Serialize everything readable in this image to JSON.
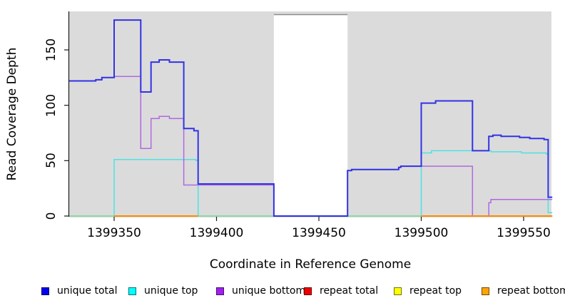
{
  "chart_data": {
    "type": "line",
    "title": "",
    "xlabel": "Coordinate in Reference Genome",
    "ylabel": "Read Coverage Depth",
    "x_ticks": [
      1399350,
      1399400,
      1399450,
      1399500,
      1399550
    ],
    "y_ticks": [
      0,
      50,
      100,
      150
    ],
    "x_range": [
      1399328,
      1399564
    ],
    "y_range_shown": [
      0,
      184
    ],
    "grid": "off",
    "panel_bg": "#DBDBDB",
    "axis_color": "#1A1A1A",
    "masked_region": {
      "x_start": 1399428,
      "x_end": 1399464,
      "fill": "#FFFFFF",
      "top_border_color": "#8C8C8C"
    },
    "draw_order": [
      "repeat_total",
      "repeat_top",
      "unique_top",
      "zero_baseline",
      "__mask__",
      "unique_bottom",
      "repeat_bottom",
      "unique_total"
    ],
    "series": {
      "unique_total": {
        "label": "unique total",
        "color": "#3232E6",
        "width": 2,
        "segments": [
          {
            "steps": [
              [
                1399328,
                122
              ],
              [
                1399341,
                123
              ],
              [
                1399344,
                125
              ],
              [
                1399350,
                177
              ],
              [
                1399363,
                112
              ],
              [
                1399368,
                139
              ],
              [
                1399372,
                141
              ],
              [
                1399377,
                139
              ],
              [
                1399384,
                79
              ],
              [
                1399389,
                77
              ],
              [
                1399391,
                29
              ],
              [
                1399428,
                0
              ],
              [
                1399464,
                41
              ],
              [
                1399466,
                42
              ],
              [
                1399489,
                44
              ],
              [
                1399490,
                45
              ],
              [
                1399500,
                102
              ],
              [
                1399507,
                104
              ],
              [
                1399525,
                59
              ],
              [
                1399533,
                72
              ],
              [
                1399535,
                73
              ],
              [
                1399539,
                72
              ],
              [
                1399548,
                71
              ],
              [
                1399553,
                70
              ],
              [
                1399560,
                69
              ],
              [
                1399562,
                17
              ]
            ],
            "end": 1399564
          }
        ]
      },
      "unique_top": {
        "label": "unique top",
        "color": "#4CE2E2",
        "width": 1.5,
        "segments": [
          {
            "steps": [
              [
                1399328,
                0
              ],
              [
                1399350,
                51
              ],
              [
                1399390,
                50
              ],
              [
                1399391,
                0
              ],
              [
                1399500,
                57
              ],
              [
                1399505,
                59
              ],
              [
                1399534,
                58
              ],
              [
                1399549,
                57
              ],
              [
                1399561,
                56
              ],
              [
                1399562,
                3
              ]
            ],
            "end": 1399564
          }
        ]
      },
      "unique_bottom": {
        "label": "unique bottom",
        "color": "#B069E0",
        "width": 1.5,
        "segments": [
          {
            "steps": [
              [
                1399328,
                122
              ],
              [
                1399341,
                123
              ],
              [
                1399344,
                125
              ],
              [
                1399350,
                126
              ],
              [
                1399363,
                61
              ],
              [
                1399368,
                88
              ],
              [
                1399372,
                90
              ],
              [
                1399377,
                88
              ],
              [
                1399384,
                28
              ],
              [
                1399428,
                0
              ],
              [
                1399464,
                41
              ],
              [
                1399466,
                42
              ],
              [
                1399489,
                44
              ],
              [
                1399490,
                45
              ],
              [
                1399525,
                0
              ],
              [
                1399533,
                12
              ],
              [
                1399534,
                15
              ]
            ],
            "end": 1399564
          }
        ]
      },
      "repeat_total": {
        "label": "repeat total",
        "color": "#E60000",
        "width": 1,
        "segments": [
          {
            "steps": [
              [
                1399328,
                0
              ]
            ],
            "end": 1399564
          }
        ]
      },
      "repeat_top": {
        "label": "repeat top",
        "color": "#F0F000",
        "width": 1,
        "segments": [
          {
            "steps": [
              [
                1399328,
                0
              ]
            ],
            "end": 1399564
          }
        ]
      },
      "repeat_bottom": {
        "label": "repeat bottom",
        "color": "#FF8C00",
        "width": 2,
        "segments": [
          {
            "steps": [
              [
                1399350,
                0
              ]
            ],
            "end": 1399391
          },
          {
            "steps": [
              [
                1399500,
                0
              ]
            ],
            "end": 1399564
          }
        ]
      },
      "zero_baseline": {
        "label": "",
        "color": "#8FD694",
        "width": 1.5,
        "segments": [
          {
            "steps": [
              [
                1399328,
                0
              ]
            ],
            "end": 1399564
          }
        ]
      }
    }
  },
  "legend": {
    "items": [
      {
        "id": "unique_total",
        "label": "unique total",
        "color": "#0000EE"
      },
      {
        "id": "unique_top",
        "label": "unique top",
        "color": "#00FFFF"
      },
      {
        "id": "unique_bottom",
        "label": "unique bottom",
        "color": "#A020F0"
      },
      {
        "id": "repeat_total",
        "label": "repeat total",
        "color": "#EE0000"
      },
      {
        "id": "repeat_top",
        "label": "repeat top",
        "color": "#FFFF00"
      },
      {
        "id": "repeat_bottom",
        "label": "repeat bottom",
        "color": "#FFA500"
      }
    ]
  }
}
